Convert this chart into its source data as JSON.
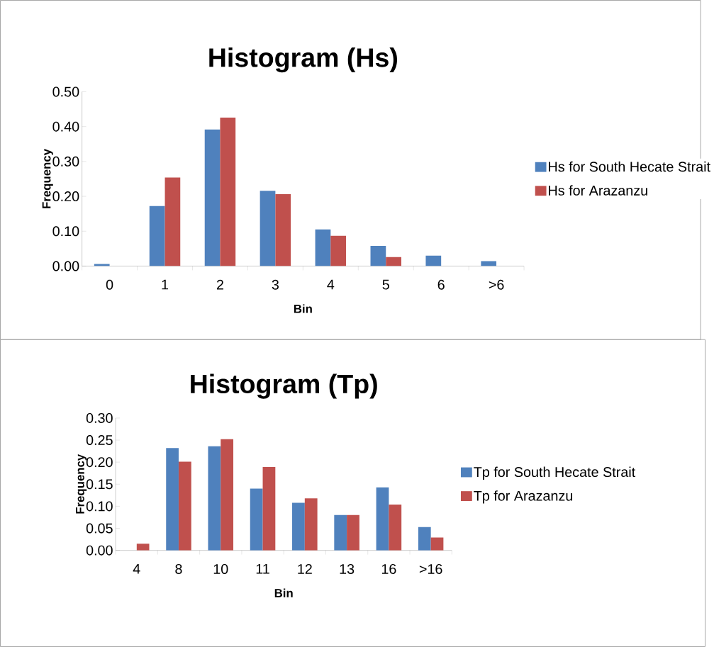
{
  "chart_data": [
    {
      "type": "bar",
      "title": "Histogram (Hs)",
      "xlabel": "Bin",
      "ylabel": "Frequency",
      "categories": [
        "0",
        "1",
        "2",
        "3",
        "4",
        "5",
        "6",
        ">6"
      ],
      "series": [
        {
          "name": "Hs for South Hecate Strait",
          "color": "#4f81bd",
          "values": [
            0.006,
            0.172,
            0.392,
            0.216,
            0.105,
            0.058,
            0.03,
            0.014
          ]
        },
        {
          "name": "Hs for Arazanzu",
          "color": "#c0504d",
          "values": [
            null,
            0.254,
            0.426,
            0.206,
            0.087,
            0.026,
            null,
            null
          ]
        }
      ],
      "ylim": [
        0,
        0.5
      ],
      "yticks": [
        {
          "value": 0,
          "label": "0.00"
        },
        {
          "value": 0.1,
          "label": "0.10"
        },
        {
          "value": 0.2,
          "label": "0.20"
        },
        {
          "value": 0.3,
          "label": "0.30"
        },
        {
          "value": 0.4,
          "label": "0.40"
        },
        {
          "value": 0.5,
          "label": "0.50"
        }
      ],
      "legend": "right"
    },
    {
      "type": "bar",
      "title": "Histogram (Tp)",
      "xlabel": "Bin",
      "ylabel": "Frequency",
      "categories": [
        "4",
        "8",
        "10",
        "11",
        "12",
        "13",
        "16",
        ">16"
      ],
      "series": [
        {
          "name": "Tp for South Hecate Strait",
          "color": "#4f81bd",
          "values": [
            null,
            0.232,
            0.236,
            0.14,
            0.108,
            0.08,
            0.143,
            0.053
          ]
        },
        {
          "name": "Tp for Arazanzu",
          "color": "#c0504d",
          "values": [
            0.015,
            0.201,
            0.252,
            0.189,
            0.118,
            0.08,
            0.104,
            0.029
          ]
        }
      ],
      "ylim": [
        0,
        0.3
      ],
      "yticks": [
        {
          "value": 0,
          "label": "0.00"
        },
        {
          "value": 0.05,
          "label": "0.05"
        },
        {
          "value": 0.1,
          "label": "0.10"
        },
        {
          "value": 0.15,
          "label": "0.15"
        },
        {
          "value": 0.2,
          "label": "0.20"
        },
        {
          "value": 0.25,
          "label": "0.25"
        },
        {
          "value": 0.3,
          "label": "0.30"
        }
      ],
      "legend": "right"
    }
  ]
}
